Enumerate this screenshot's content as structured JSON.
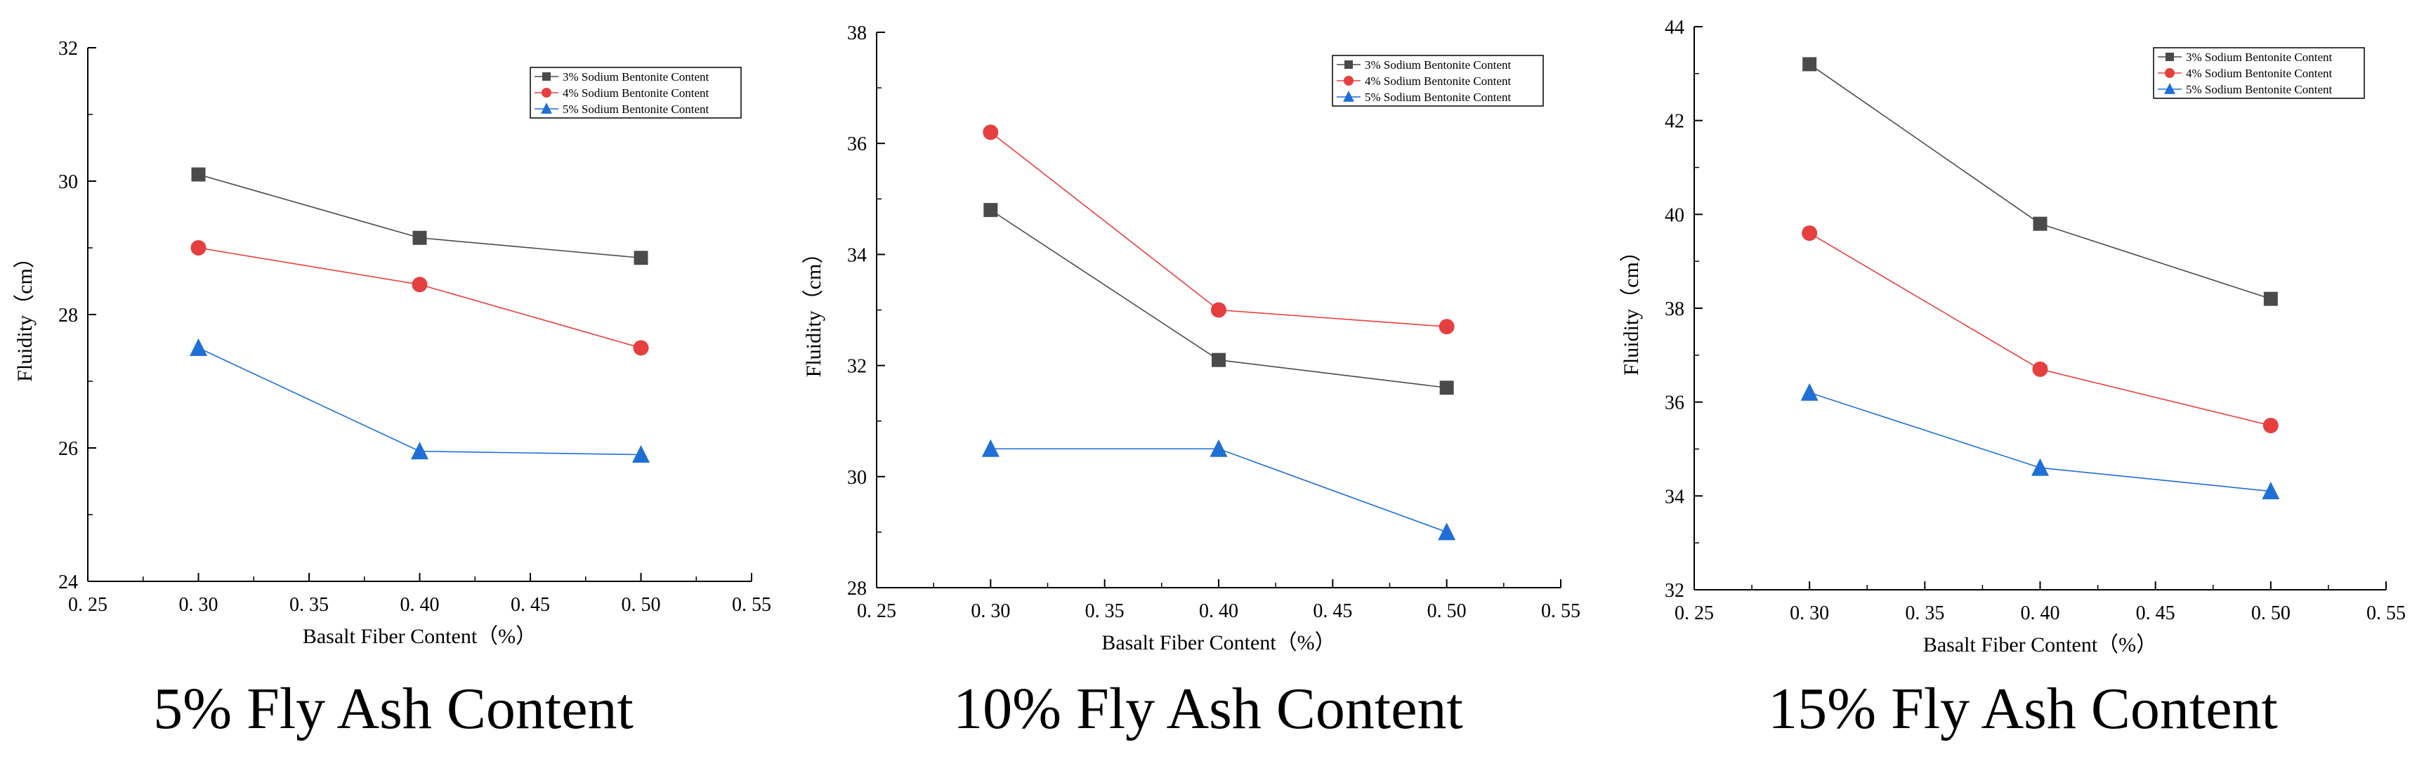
{
  "colors": {
    "s1": "#4a4a4a",
    "s2": "#e5403f",
    "s3": "#1f6fd6",
    "axis": "#000000"
  },
  "chart_data": [
    {
      "type": "line",
      "caption": "5% Fly Ash Content",
      "xlabel": "Basalt Fiber Content（%）",
      "ylabel": "Fluidity（cm）",
      "xlim": [
        0.25,
        0.55
      ],
      "ylim": [
        24,
        32
      ],
      "xticks": [
        "0. 25",
        "0. 30",
        "0. 35",
        "0. 40",
        "0. 45",
        "0. 50",
        "0. 55"
      ],
      "yticks": [
        "24",
        "26",
        "28",
        "30",
        "32"
      ],
      "legend_position": "top-right",
      "x": [
        0.3,
        0.4,
        0.5
      ],
      "series": [
        {
          "name": "3%  Sodium Bentonite Content",
          "marker": "square",
          "values": [
            30.1,
            29.15,
            28.85
          ]
        },
        {
          "name": "4%  Sodium Bentonite Content",
          "marker": "circle",
          "values": [
            29.0,
            28.45,
            27.5
          ]
        },
        {
          "name": "5%  Sodium Bentonite Content",
          "marker": "triangle",
          "values": [
            27.5,
            25.95,
            25.9
          ]
        }
      ]
    },
    {
      "type": "line",
      "caption": "10% Fly Ash Content",
      "xlabel": "Basalt Fiber Content（%）",
      "ylabel": "Fluidity（cm）",
      "xlim": [
        0.25,
        0.55
      ],
      "ylim": [
        28,
        38
      ],
      "xticks": [
        "0. 25",
        "0. 30",
        "0. 35",
        "0. 40",
        "0. 45",
        "0. 50",
        "0. 55"
      ],
      "yticks": [
        "28",
        "30",
        "32",
        "34",
        "36",
        "38"
      ],
      "legend_position": "top-right",
      "x": [
        0.3,
        0.4,
        0.5
      ],
      "series": [
        {
          "name": "3%  Sodium Bentonite Content",
          "marker": "square",
          "values": [
            34.8,
            32.1,
            31.6
          ]
        },
        {
          "name": "4%  Sodium Bentonite Content",
          "marker": "circle",
          "values": [
            36.2,
            33.0,
            32.7
          ]
        },
        {
          "name": "5%  Sodium Bentonite Content",
          "marker": "triangle",
          "values": [
            30.5,
            30.5,
            29.0
          ]
        }
      ]
    },
    {
      "type": "line",
      "caption": "15% Fly Ash Content",
      "xlabel": "Basalt Fiber Content（%）",
      "ylabel": "Fluidity（cm）",
      "xlim": [
        0.25,
        0.55
      ],
      "ylim": [
        32,
        44
      ],
      "xticks": [
        "0. 25",
        "0. 30",
        "0. 35",
        "0. 40",
        "0. 45",
        "0. 50",
        "0. 55"
      ],
      "yticks": [
        "32",
        "34",
        "36",
        "38",
        "40",
        "42",
        "44"
      ],
      "legend_position": "top-right",
      "x": [
        0.3,
        0.4,
        0.5
      ],
      "series": [
        {
          "name": "3%  Sodium Bentonite Content",
          "marker": "square",
          "values": [
            43.2,
            39.8,
            38.2
          ]
        },
        {
          "name": "4%  Sodium Bentonite Content",
          "marker": "circle",
          "values": [
            39.6,
            36.7,
            35.5
          ]
        },
        {
          "name": "5%  Sodium Bentonite Content",
          "marker": "triangle",
          "values": [
            36.2,
            34.6,
            34.1
          ]
        }
      ]
    }
  ]
}
